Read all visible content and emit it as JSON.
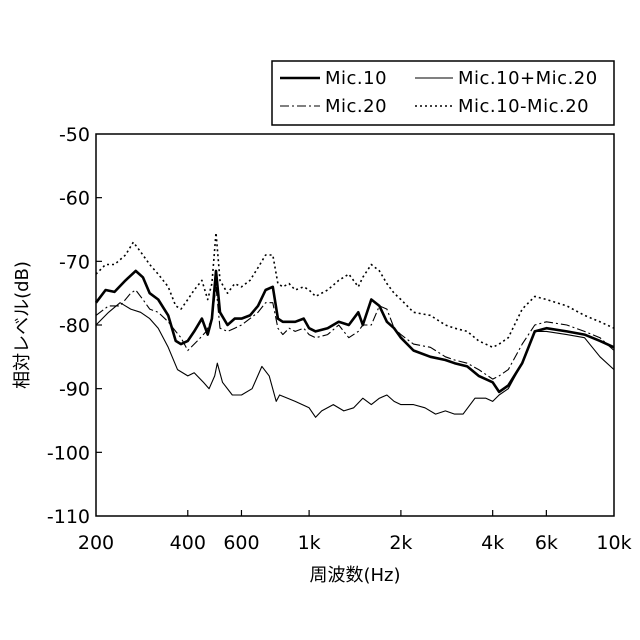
{
  "chart_data": {
    "type": "line",
    "xlabel": "周波数(Hz)",
    "ylabel": "相対レベル(dB)",
    "xscale": "log",
    "xlim": [
      200,
      10000
    ],
    "ylim": [
      -110,
      -50
    ],
    "x_ticks": [
      {
        "value": 200,
        "label": "200"
      },
      {
        "value": 400,
        "label": "400"
      },
      {
        "value": 600,
        "label": "600"
      },
      {
        "value": 1000,
        "label": "1k"
      },
      {
        "value": 2000,
        "label": "2k"
      },
      {
        "value": 4000,
        "label": "4k"
      },
      {
        "value": 6000,
        "label": "6k"
      },
      {
        "value": 10000,
        "label": "10k"
      }
    ],
    "y_ticks": [
      {
        "value": -50,
        "label": "-50"
      },
      {
        "value": -60,
        "label": "-60"
      },
      {
        "value": -70,
        "label": "-70"
      },
      {
        "value": -80,
        "label": "-80"
      },
      {
        "value": -90,
        "label": "-90"
      },
      {
        "value": -100,
        "label": "-100"
      },
      {
        "value": -110,
        "label": "-110"
      }
    ],
    "legend_position": "top-right, outside plot area",
    "grid": false,
    "series": [
      {
        "name": "Mic.10",
        "style": "bold-solid",
        "x": [
          200,
          215,
          230,
          250,
          270,
          285,
          300,
          320,
          345,
          365,
          380,
          400,
          420,
          445,
          465,
          480,
          495,
          510,
          540,
          570,
          600,
          640,
          680,
          720,
          760,
          790,
          820,
          860,
          900,
          960,
          1000,
          1050,
          1150,
          1250,
          1350,
          1450,
          1500,
          1600,
          1700,
          1800,
          1900,
          2000,
          2200,
          2500,
          2800,
          3000,
          3300,
          3600,
          4000,
          4200,
          4500,
          5000,
          5500,
          6000,
          7000,
          8000,
          9000,
          10000
        ],
        "values": [
          -76.5,
          -74.5,
          -74.8,
          -73,
          -71.5,
          -72.5,
          -75,
          -76,
          -78.5,
          -82.5,
          -83,
          -82.5,
          -81,
          -79,
          -81.5,
          -79,
          -71.5,
          -78,
          -80,
          -79,
          -79,
          -78.5,
          -77,
          -74.5,
          -74,
          -79,
          -79.5,
          -79.5,
          -79.5,
          -79,
          -80.5,
          -81,
          -80.5,
          -79.5,
          -80,
          -78,
          -80,
          -76,
          -77,
          -79.5,
          -80.5,
          -82,
          -84,
          -85,
          -85.5,
          -86,
          -86.5,
          -88,
          -89,
          -90.5,
          -89.5,
          -86,
          -81,
          -80.5,
          -81,
          -81.5,
          -82.5,
          -83.5
        ]
      },
      {
        "name": "Mic.10+Mic.20",
        "style": "thin-solid",
        "x": [
          200,
          220,
          240,
          260,
          280,
          300,
          320,
          345,
          370,
          400,
          420,
          450,
          470,
          490,
          500,
          520,
          560,
          600,
          650,
          700,
          740,
          780,
          800,
          850,
          900,
          950,
          1000,
          1050,
          1100,
          1200,
          1300,
          1400,
          1500,
          1600,
          1700,
          1800,
          1900,
          2000,
          2200,
          2400,
          2600,
          2800,
          3000,
          3200,
          3500,
          3800,
          4000,
          4200,
          4500,
          5000,
          5500,
          6000,
          7000,
          8000,
          9000,
          10000
        ],
        "values": [
          -80,
          -78,
          -76.5,
          -77.5,
          -78,
          -79,
          -80.5,
          -83.5,
          -87,
          -88,
          -87.5,
          -89,
          -90,
          -88,
          -86,
          -89,
          -91,
          -91,
          -90,
          -86.5,
          -88,
          -92,
          -91,
          -91.5,
          -92,
          -92.5,
          -93,
          -94.5,
          -93.5,
          -92.5,
          -93.5,
          -93,
          -91.5,
          -92.5,
          -91.5,
          -91,
          -92,
          -92.5,
          -92.5,
          -93,
          -94,
          -93.5,
          -94,
          -94,
          -91.5,
          -91.5,
          -92,
          -91,
          -90,
          -86,
          -81,
          -81,
          -81.5,
          -82,
          -85,
          -87
        ]
      },
      {
        "name": "Mic.20",
        "style": "dash-dot",
        "x": [
          200,
          220,
          240,
          260,
          270,
          285,
          300,
          320,
          345,
          365,
          380,
          400,
          430,
          460,
          480,
          495,
          510,
          540,
          570,
          600,
          640,
          680,
          720,
          760,
          790,
          820,
          860,
          900,
          960,
          1000,
          1050,
          1150,
          1250,
          1350,
          1450,
          1500,
          1600,
          1700,
          1800,
          1900,
          2000,
          2200,
          2500,
          2800,
          3000,
          3300,
          3600,
          4000,
          4200,
          4500,
          5000,
          5500,
          6000,
          7000,
          8000,
          9000,
          10000
        ],
        "values": [
          -78.5,
          -77,
          -77,
          -75,
          -74.5,
          -76,
          -77.5,
          -78,
          -79.5,
          -81,
          -82,
          -84,
          -82.5,
          -81,
          -79,
          -74,
          -80.5,
          -81,
          -80.5,
          -80,
          -79,
          -78,
          -76.5,
          -76.5,
          -80.5,
          -81.5,
          -80.5,
          -81,
          -80.5,
          -81.5,
          -82,
          -81.5,
          -80,
          -82,
          -81,
          -80,
          -80,
          -77,
          -77.5,
          -80.5,
          -81.5,
          -83,
          -83.5,
          -85,
          -85.5,
          -86,
          -87,
          -88.5,
          -88,
          -87,
          -83,
          -80,
          -79.5,
          -80,
          -81,
          -82,
          -84
        ]
      },
      {
        "name": "Mic.10-Mic.20",
        "style": "dotted",
        "x": [
          200,
          215,
          230,
          250,
          265,
          280,
          300,
          320,
          345,
          365,
          380,
          400,
          420,
          445,
          465,
          480,
          495,
          510,
          540,
          570,
          600,
          640,
          680,
          720,
          760,
          790,
          820,
          860,
          900,
          960,
          1000,
          1050,
          1150,
          1250,
          1350,
          1450,
          1500,
          1600,
          1700,
          1800,
          1900,
          2000,
          2200,
          2500,
          2800,
          3000,
          3300,
          3600,
          4000,
          4200,
          4500,
          5000,
          5500,
          6000,
          7000,
          8000,
          9000,
          10000
        ],
        "values": [
          -72,
          -70.5,
          -70.5,
          -69,
          -67,
          -68.5,
          -70.5,
          -72,
          -74,
          -77,
          -77.5,
          -76,
          -74.5,
          -73,
          -76,
          -73.5,
          -65.5,
          -73,
          -75,
          -73.5,
          -74,
          -73,
          -71,
          -69,
          -69,
          -73.5,
          -74,
          -73.5,
          -74.5,
          -74,
          -74.5,
          -75.5,
          -74.5,
          -73,
          -72,
          -74,
          -72.5,
          -70.5,
          -71.5,
          -73.5,
          -75,
          -76,
          -78,
          -78.5,
          -80,
          -80.5,
          -81,
          -82.5,
          -83.5,
          -83,
          -82,
          -77.5,
          -75.5,
          -76,
          -77,
          -78.5,
          -79.5,
          -80.5
        ]
      }
    ]
  }
}
